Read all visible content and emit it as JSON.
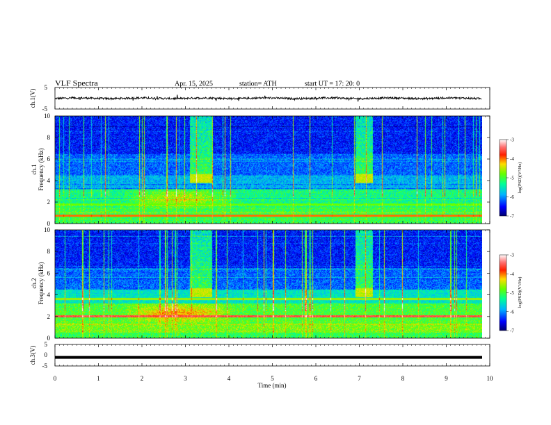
{
  "header": {
    "title": "VLF  Spectra",
    "date": "Apr. 15, 2025",
    "station": "station= ATH",
    "start_ut": "start  UT  =    17: 20: 0"
  },
  "chart_data": [
    {
      "type": "line",
      "panel": "ch1-waveform",
      "ylabel": "ch.1(V)",
      "ylim": [
        -5,
        5
      ],
      "yticks": [
        "5",
        "-5"
      ],
      "xlim": [
        0,
        10
      ],
      "trace": "noisy signal near 0 V (about -1 to +1 V)"
    },
    {
      "type": "heatmap",
      "panel": "ch1-spectrogram",
      "ylabel": "ch.1\nFrequency  (kHz)",
      "ylim": [
        0,
        10
      ],
      "yticks": [
        "0",
        "2",
        "4",
        "6",
        "8",
        "10"
      ],
      "xlim": [
        0,
        10
      ],
      "colorbar": {
        "label": "log(PSD)(V²/Hz)",
        "range": [
          -7,
          -3
        ],
        "ticks": [
          "-3",
          "-4",
          "-5",
          "-6",
          "-7"
        ],
        "colors": [
          "#000080",
          "#0000ff",
          "#00c8ff",
          "#00ff80",
          "#c8ff00",
          "#ffc800",
          "#ff0000",
          "#ff8080",
          "#ffffff"
        ]
      },
      "features": [
        {
          "kind": "broadband emission",
          "t_start": 3.1,
          "t_end": 3.6,
          "f_max": 10
        },
        {
          "kind": "broadband emission",
          "t_start": 6.9,
          "t_end": 7.3,
          "f_max": 10
        },
        {
          "kind": "enhanced band",
          "t_start": 1.5,
          "t_end": 4.2,
          "f_low": 1.5,
          "f_high": 3.2
        }
      ]
    },
    {
      "type": "heatmap",
      "panel": "ch2-spectrogram",
      "ylabel": "ch.2\nFrequency  (kHz)",
      "ylim": [
        0,
        10
      ],
      "yticks": [
        "0",
        "2",
        "4",
        "6",
        "8",
        "10"
      ],
      "xlim": [
        0,
        10
      ],
      "colorbar": {
        "label": "log(PSD)(V²/Hz)",
        "range": [
          -7,
          -3
        ],
        "ticks": [
          "-3",
          "-4",
          "-5",
          "-6",
          "-7"
        ]
      },
      "features": [
        {
          "kind": "broadband emission",
          "t_start": 3.1,
          "t_end": 3.6,
          "f_max": 10
        },
        {
          "kind": "broadband emission",
          "t_start": 6.9,
          "t_end": 7.3,
          "f_max": 10
        },
        {
          "kind": "strong line",
          "f": 2.0
        },
        {
          "kind": "enhanced band",
          "t_start": 1.5,
          "t_end": 4.2,
          "f_low": 1.8,
          "f_high": 3.2
        }
      ]
    },
    {
      "type": "line",
      "panel": "ch3-waveform",
      "ylabel": "ch.3(V)",
      "ylim": [
        -5,
        5
      ],
      "yticks": [
        "5",
        "0",
        "-5"
      ],
      "xlim": [
        0,
        10
      ],
      "trace": "flat at about -1 V"
    }
  ],
  "xaxis": {
    "label": "Time  (min)",
    "ticks": [
      "0",
      "1",
      "2",
      "3",
      "4",
      "5",
      "6",
      "7",
      "8",
      "9",
      "10"
    ]
  }
}
